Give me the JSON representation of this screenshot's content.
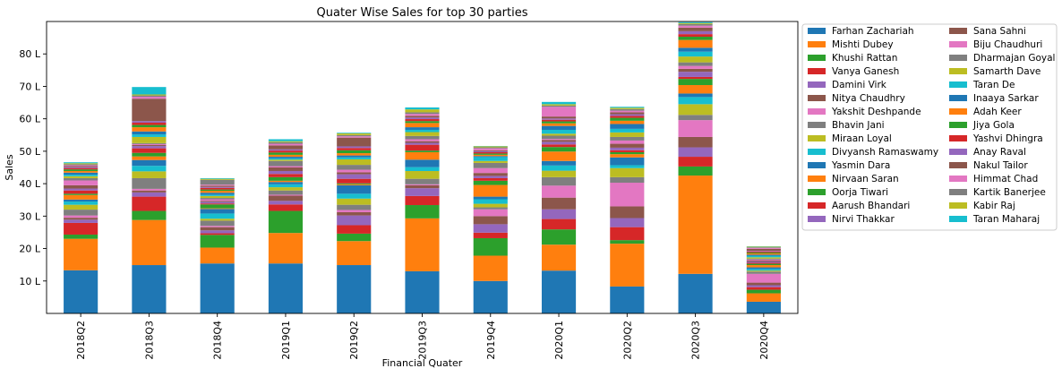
{
  "chart_data": {
    "type": "bar",
    "stacked": true,
    "title": "Quater Wise Sales for top 30 parties",
    "xlabel": "Financial Quater",
    "ylabel": "Sales",
    "categories": [
      "2018Q2",
      "2018Q3",
      "2018Q4",
      "2019Q1",
      "2019Q2",
      "2019Q3",
      "2019Q4",
      "2020Q1",
      "2020Q2",
      "2020Q3",
      "2020Q4"
    ],
    "ylim": [
      0,
      90
    ],
    "yticks": [
      10,
      20,
      30,
      40,
      50,
      60,
      70,
      80
    ],
    "ytick_labels": [
      "10 L",
      "20 L",
      "30 L",
      "40 L",
      "50 L",
      "60 L",
      "70 L",
      "80 L"
    ],
    "grid": false,
    "legend_position": "outside-right",
    "series": [
      {
        "name": "Farhan Zachariah",
        "color": "#1f77b4",
        "values": [
          13.3,
          14.9,
          15.4,
          15.4,
          14.9,
          13.0,
          10.0,
          13.2,
          8.3,
          12.2,
          3.6
        ]
      },
      {
        "name": "Mishti Dubey",
        "color": "#ff7f0e",
        "values": [
          9.7,
          13.9,
          4.9,
          9.4,
          7.4,
          16.3,
          7.8,
          8.0,
          13.2,
          30.3,
          2.6
        ]
      },
      {
        "name": "Khushi Rattan",
        "color": "#2ca02c",
        "values": [
          1.3,
          2.8,
          3.9,
          6.8,
          2.3,
          4.1,
          5.4,
          4.7,
          1.1,
          2.8,
          1.1
        ]
      },
      {
        "name": "Vanya Ganesh",
        "color": "#d62728",
        "values": [
          3.6,
          4.4,
          0.5,
          2.0,
          2.6,
          2.8,
          1.7,
          3.2,
          4.0,
          3.0,
          0.8
        ]
      },
      {
        "name": "Damini Virk",
        "color": "#9467bd",
        "values": [
          1.0,
          1.3,
          0.9,
          1.1,
          3.0,
          2.4,
          2.6,
          3.0,
          2.8,
          2.9,
          0.6
        ]
      },
      {
        "name": "Nitya Chaudhry",
        "color": "#8c564b",
        "values": [
          0.6,
          0.6,
          1.0,
          1.6,
          1.0,
          0.9,
          2.5,
          3.6,
          3.6,
          3.2,
          0.8
        ]
      },
      {
        "name": "Yakshit Deshpande",
        "color": "#e377c2",
        "values": [
          0.7,
          0.5,
          0.4,
          0.3,
          0.7,
          0.3,
          2.1,
          3.7,
          7.3,
          5.2,
          2.7
        ]
      },
      {
        "name": "Bhavin Jani",
        "color": "#7f7f7f",
        "values": [
          1.8,
          3.3,
          1.6,
          1.3,
          1.6,
          1.7,
          0.6,
          2.6,
          1.7,
          1.6,
          0.7
        ]
      },
      {
        "name": "Miraan Loyal",
        "color": "#bcbd22",
        "values": [
          1.5,
          2.1,
          0.6,
          1.0,
          1.9,
          2.4,
          1.1,
          2.0,
          2.8,
          3.3,
          0.3
        ]
      },
      {
        "name": "Divyansh Ramaswamy",
        "color": "#17becf",
        "values": [
          1.0,
          1.7,
          1.6,
          0.9,
          1.5,
          1.2,
          1.4,
          1.6,
          0.9,
          2.2,
          0.5
        ]
      },
      {
        "name": "Yasmin Dara",
        "color": "#1f77b4",
        "values": [
          0.6,
          1.8,
          1.4,
          0.7,
          2.6,
          2.3,
          0.8,
          1.4,
          2.4,
          1.1,
          0.5
        ]
      },
      {
        "name": "Nirvaan Saran",
        "color": "#ff7f0e",
        "values": [
          1.4,
          1.1,
          0.2,
          0.4,
          0.3,
          2.3,
          3.6,
          2.9,
          1.0,
          2.6,
          0.7
        ]
      },
      {
        "name": "Oorja Tiwari",
        "color": "#2ca02c",
        "values": [
          0.4,
          1.1,
          1.2,
          1.1,
          0.3,
          0.5,
          1.3,
          1.4,
          0.6,
          1.9,
          0.4
        ]
      },
      {
        "name": "Aarush Bhandari",
        "color": "#d62728",
        "values": [
          1.0,
          1.4,
          0.3,
          1.0,
          1.4,
          1.8,
          0.8,
          0.8,
          0.6,
          0.6,
          0.3
        ]
      },
      {
        "name": "Nirvi Thakkar",
        "color": "#9467bd",
        "values": [
          0.6,
          0.7,
          0.5,
          0.9,
          1.4,
          0.6,
          0.7,
          0.8,
          0.8,
          1.6,
          0.4
        ]
      },
      {
        "name": "Sana Sahni",
        "color": "#8c564b",
        "values": [
          1.0,
          0.3,
          0.3,
          1.1,
          0.6,
          0.5,
          0.9,
          0.6,
          1.2,
          0.9,
          0.3
        ]
      },
      {
        "name": "Biju Chaudhuri",
        "color": "#e377c2",
        "values": [
          1.5,
          0.3,
          0.5,
          0.4,
          0.8,
          0.6,
          1.5,
          0.3,
          1.0,
          0.9,
          0.3
        ]
      },
      {
        "name": "Dharmajan Goyal",
        "color": "#7f7f7f",
        "values": [
          0.7,
          0.3,
          0.4,
          1.6,
          1.5,
          1.0,
          1.6,
          1.0,
          1.1,
          1.1,
          0.3
        ]
      },
      {
        "name": "Samarth Dave",
        "color": "#bcbd22",
        "values": [
          0.6,
          1.9,
          0.6,
          0.4,
          1.7,
          1.2,
          0.6,
          0.6,
          1.4,
          1.8,
          0.4
        ]
      },
      {
        "name": "Taran De",
        "color": "#17becf",
        "values": [
          0.5,
          0.8,
          0.4,
          0.4,
          0.6,
          0.7,
          1.2,
          1.2,
          1.1,
          1.5,
          0.5
        ]
      },
      {
        "name": "Inaaya  Sarkar",
        "color": "#1f77b4",
        "values": [
          0.6,
          0.9,
          0.6,
          0.5,
          0.6,
          0.8,
          0.3,
          1.2,
          1.5,
          1.2,
          0.3
        ]
      },
      {
        "name": "Adah Keer",
        "color": "#ff7f0e",
        "values": [
          0.5,
          1.3,
          0.6,
          0.6,
          0.7,
          1.3,
          0.4,
          0.8,
          1.0,
          2.4,
          0.4
        ]
      },
      {
        "name": "Jiya Gola",
        "color": "#2ca02c",
        "values": [
          0.5,
          0.7,
          0.4,
          0.7,
          0.9,
          0.6,
          0.4,
          0.6,
          0.9,
          1.0,
          0.3
        ]
      },
      {
        "name": "Yashvi Dhingra",
        "color": "#d62728",
        "values": [
          0.4,
          0.7,
          0.5,
          0.6,
          0.7,
          0.6,
          0.4,
          0.5,
          0.6,
          0.8,
          0.3
        ]
      },
      {
        "name": "Anay Raval",
        "color": "#9467bd",
        "values": [
          0.3,
          0.5,
          0.3,
          0.4,
          0.5,
          0.5,
          0.3,
          0.4,
          0.5,
          0.9,
          0.2
        ]
      },
      {
        "name": "Nakul Tailor",
        "color": "#8c564b",
        "values": [
          0.3,
          6.9,
          0.4,
          1.2,
          2.7,
          0.5,
          0.3,
          0.6,
          0.6,
          1.1,
          0.6
        ]
      },
      {
        "name": "Himmat Chad",
        "color": "#e377c2",
        "values": [
          0.3,
          0.6,
          0.3,
          0.5,
          0.4,
          0.6,
          0.6,
          3.0,
          0.5,
          0.6,
          0.3
        ]
      },
      {
        "name": "Kartik Banerjee",
        "color": "#7f7f7f",
        "values": [
          0.3,
          0.4,
          1.5,
          0.5,
          0.4,
          0.5,
          0.3,
          0.4,
          0.5,
          0.5,
          0.2
        ]
      },
      {
        "name": "Kabir Raj",
        "color": "#bcbd22",
        "values": [
          0.3,
          0.3,
          0.3,
          0.3,
          0.5,
          0.9,
          0.3,
          0.4,
          0.4,
          0.3,
          0.2
        ]
      },
      {
        "name": "Taran Maharaj",
        "color": "#17becf",
        "values": [
          0.3,
          2.3,
          0.2,
          0.6,
          0.2,
          0.6,
          0.1,
          0.7,
          0.3,
          0.3,
          0.1
        ]
      }
    ]
  }
}
